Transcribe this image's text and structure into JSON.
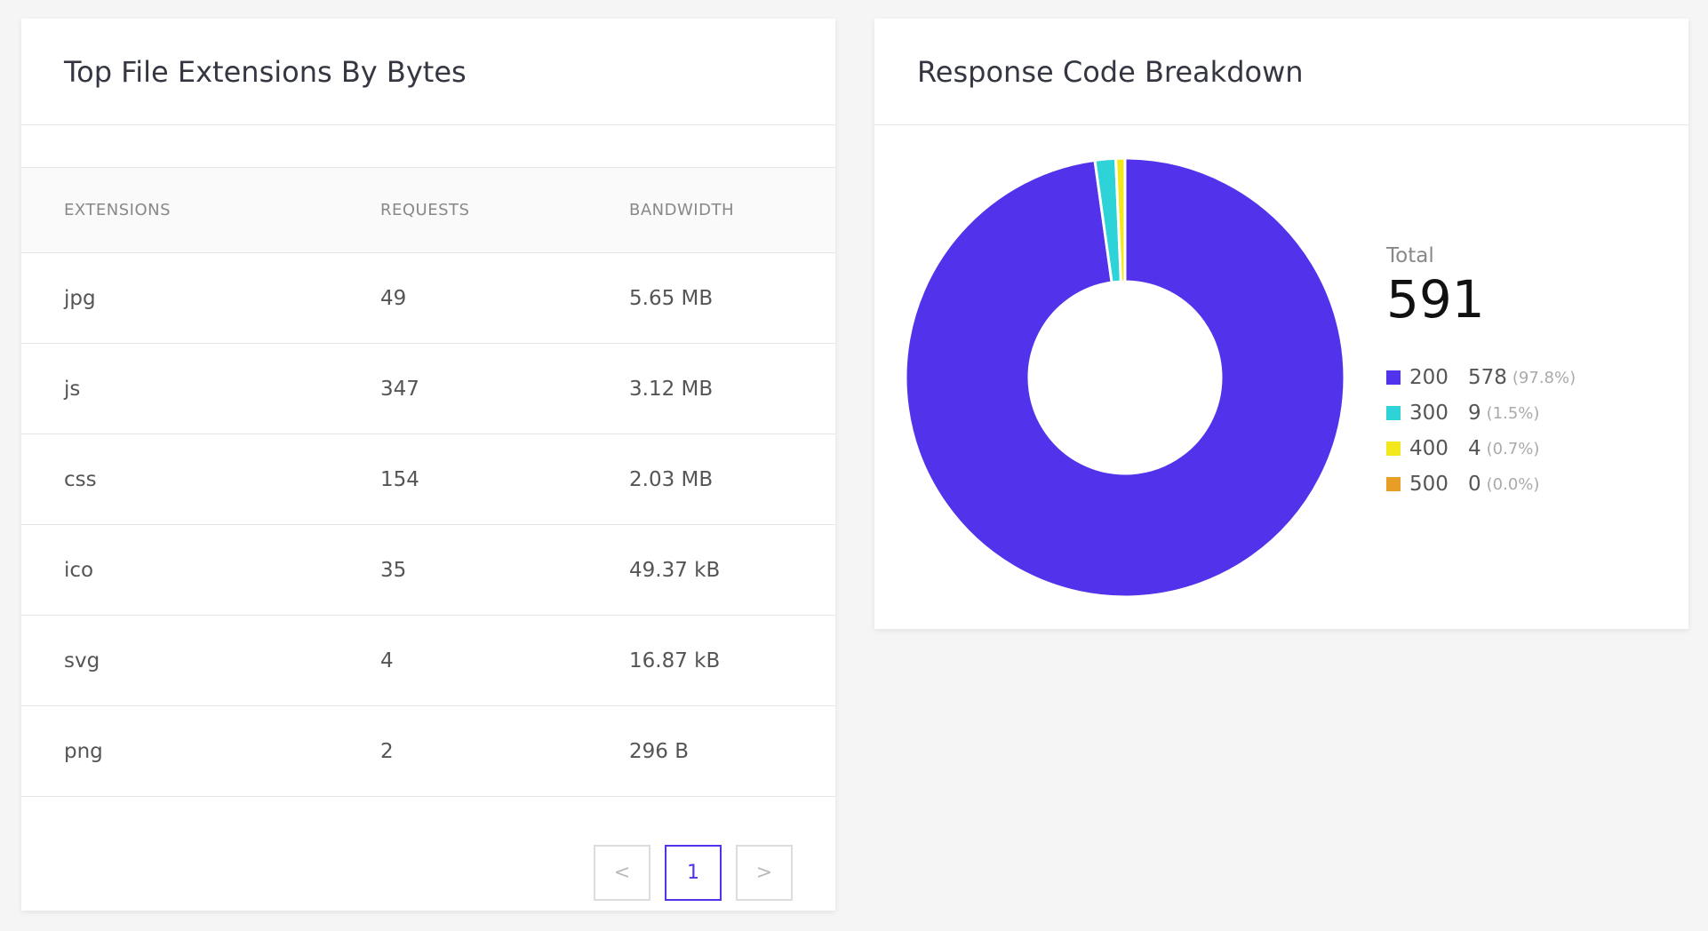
{
  "extensions_card": {
    "title": "Top File Extensions By Bytes",
    "columns": [
      "EXTENSIONS",
      "REQUESTS",
      "BANDWIDTH"
    ],
    "rows": [
      [
        "jpg",
        "49",
        "5.65 MB"
      ],
      [
        "js",
        "347",
        "3.12 MB"
      ],
      [
        "css",
        "154",
        "2.03 MB"
      ],
      [
        "ico",
        "35",
        "49.37 kB"
      ],
      [
        "svg",
        "4",
        "16.87 kB"
      ],
      [
        "png",
        "2",
        "296 B"
      ]
    ],
    "pagination": {
      "prev": "<",
      "current": "1",
      "next": ">"
    }
  },
  "response_card": {
    "title": "Response Code Breakdown",
    "total_label": "Total",
    "total_value": "591",
    "chart_data": {
      "type": "pie",
      "donut": true,
      "categories": [
        "200",
        "300",
        "400",
        "500"
      ],
      "values": [
        578,
        9,
        4,
        0
      ],
      "percent_labels": [
        "(97.8%)",
        "(1.5%)",
        "(0.7%)",
        "(0.0%)"
      ],
      "colors": [
        "#5232ea",
        "#2ed3d7",
        "#f4e81c",
        "#e89d25"
      ],
      "legend": "right"
    }
  }
}
